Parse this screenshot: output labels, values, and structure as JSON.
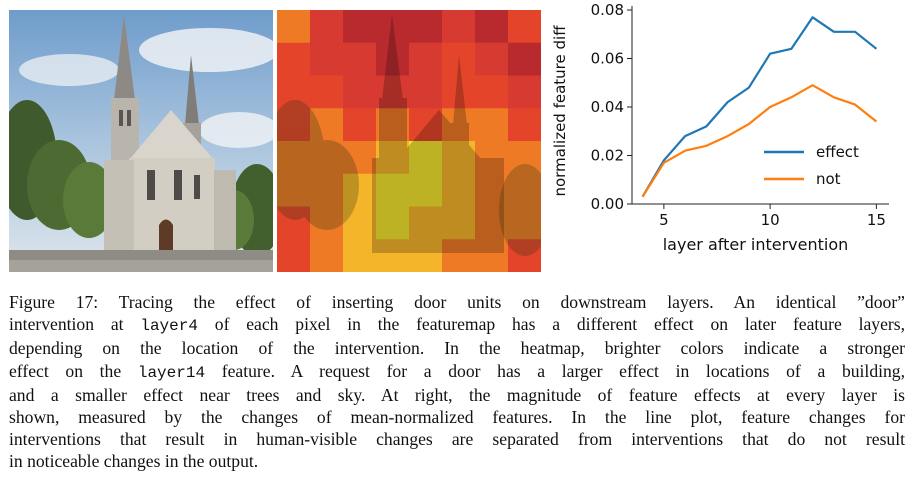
{
  "figure": {
    "caption_label": "Figure 17:",
    "caption_lines": [
      [
        {
          "t": "Figure 17: Tracing the effect of inserting door units on downstream layers.  An identical ”door”"
        }
      ],
      [
        {
          "t": "intervention at "
        },
        {
          "m": "layer4"
        },
        {
          "t": " of each pixel in the featuremap has a different effect on later feature layers,"
        }
      ],
      [
        {
          "t": "depending on the location of the intervention. In the heatmap, brighter colors indicate a stronger"
        }
      ],
      [
        {
          "t": "effect on the "
        },
        {
          "m": "layer14"
        },
        {
          "t": " feature. A request for a door has a larger effect in locations of a building,"
        }
      ],
      [
        {
          "t": "and a smaller effect near trees and sky. At right, the magnitude of feature effects at every layer is"
        }
      ],
      [
        {
          "t": "shown, measured by the changes of mean-normalized features. In the line plot, feature changes for"
        }
      ],
      [
        {
          "t": "interventions that result in human-visible changes are separated from interventions that do not result"
        }
      ],
      [
        {
          "t": "in noticeable changes in the output."
        }
      ]
    ]
  },
  "heatmap": {
    "grid": [
      [
        2,
        4,
        5,
        5,
        5,
        4,
        5,
        3
      ],
      [
        3,
        4,
        4,
        5,
        4,
        3,
        4,
        5
      ],
      [
        3,
        3,
        4,
        4,
        4,
        3,
        3,
        4
      ],
      [
        3,
        2,
        3,
        2,
        3,
        2,
        2,
        3
      ],
      [
        2,
        2,
        2,
        1,
        0,
        1,
        2,
        2
      ],
      [
        2,
        2,
        1,
        0,
        0,
        1,
        2,
        2
      ],
      [
        3,
        2,
        1,
        0,
        1,
        1,
        2,
        2
      ],
      [
        3,
        2,
        1,
        1,
        1,
        2,
        2,
        3
      ]
    ],
    "palette": [
      "#f2e62e",
      "#f5b52a",
      "#ee7a26",
      "#e4452a",
      "#d63a30",
      "#b82a2e"
    ]
  },
  "chart_data": {
    "type": "line",
    "xlabel": "layer after intervention",
    "ylabel": "normalized feature diff",
    "xlim": [
      3.5,
      15.5
    ],
    "ylim": [
      0.0,
      0.08
    ],
    "xticks": [
      5,
      10,
      15
    ],
    "xtick_labels": [
      "5",
      "10",
      "15"
    ],
    "yticks": [
      0.0,
      0.02,
      0.04,
      0.06,
      0.08
    ],
    "ytick_labels": [
      "0.00",
      "0.02",
      "0.04",
      "0.06",
      "0.08"
    ],
    "legend_position": "lower-right",
    "series": [
      {
        "name": "effect",
        "color": "#1f77b4",
        "x": [
          4,
          5,
          6,
          7,
          8,
          9,
          10,
          11,
          12,
          13,
          14,
          15
        ],
        "values": [
          0.003,
          0.018,
          0.028,
          0.032,
          0.042,
          0.048,
          0.062,
          0.064,
          0.077,
          0.071,
          0.071,
          0.064
        ]
      },
      {
        "name": "not",
        "color": "#ff7f0e",
        "x": [
          4,
          5,
          6,
          7,
          8,
          9,
          10,
          11,
          12,
          13,
          14,
          15
        ],
        "values": [
          0.003,
          0.017,
          0.022,
          0.024,
          0.028,
          0.033,
          0.04,
          0.044,
          0.049,
          0.044,
          0.041,
          0.034
        ]
      }
    ]
  }
}
